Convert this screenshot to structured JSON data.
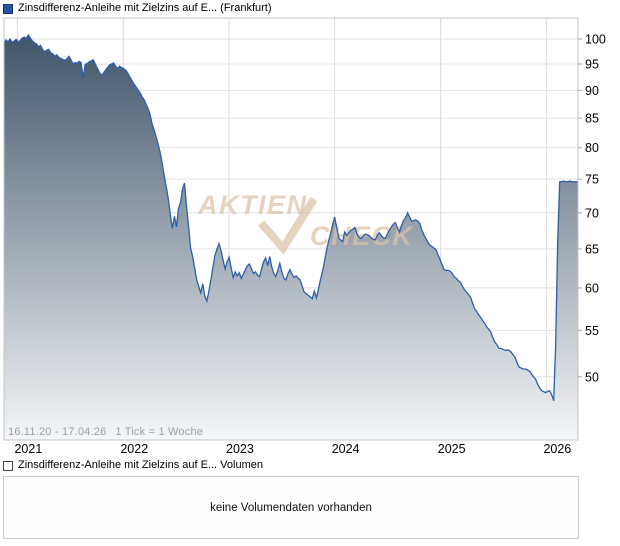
{
  "header": {
    "title": "Zinsdifferenz-Anleihe mit Zielzins auf E... (Frankfurt)"
  },
  "chart_data": {
    "type": "area",
    "title": "Zinsdifferenz-Anleihe mit Zielzins auf E... (Frankfurt)",
    "scale": "log",
    "x_unit": "weeks since 16.11.2020",
    "total_weeks": 283,
    "range_label": "16.11.20 - 17.04.26",
    "tick_note": "1 Tick = 1 Woche",
    "ylim": [
      43.9,
      104.4
    ],
    "y_ticks": [
      100,
      95,
      90,
      85,
      80,
      75,
      70,
      65,
      60,
      55,
      50
    ],
    "y_grid_unlabeled": [
      45
    ],
    "x_ticks": [
      {
        "label": "2021",
        "week": 6.6
      },
      {
        "label": "2022",
        "week": 58.8
      },
      {
        "label": "2023",
        "week": 110.9
      },
      {
        "label": "2024",
        "week": 163.0
      },
      {
        "label": "2025",
        "week": 215.3
      },
      {
        "label": "2026",
        "week": 267.4
      }
    ],
    "watermark": {
      "line1": "AKTIEN",
      "line2": "CHECK"
    },
    "colors": {
      "line": "#2e5fa5",
      "fill_top": "#3a4e64",
      "fill_bottom": "#f4f6f8",
      "grid": "#e2e2e2",
      "grid_vertical": "#dcdcdc",
      "border": "#c2c5c7",
      "tick": "#aaaaaa",
      "axis_text": "#000000",
      "watermark": "#d8c2a6",
      "footer_text": "#9aa1a8"
    },
    "series": [
      {
        "name": "Zinsdifferenz-Anleihe mit Zielzins auf E... (Frankfurt)",
        "points": [
          [
            0,
            99.2
          ],
          [
            1,
            99.8
          ],
          [
            2,
            99.4
          ],
          [
            3,
            100.0
          ],
          [
            4,
            99.3
          ],
          [
            5,
            99.6
          ],
          [
            6,
            99.9
          ],
          [
            7,
            99.4
          ],
          [
            8,
            99.7
          ],
          [
            9,
            100.2
          ],
          [
            10,
            100.4
          ],
          [
            11,
            100.1
          ],
          [
            12,
            100.8
          ],
          [
            13,
            100.2
          ],
          [
            14,
            99.6
          ],
          [
            15,
            99.2
          ],
          [
            16,
            99.0
          ],
          [
            17,
            98.4
          ],
          [
            18,
            98.7
          ],
          [
            19,
            97.9
          ],
          [
            20,
            97.4
          ],
          [
            21,
            97.7
          ],
          [
            22,
            97.9
          ],
          [
            23,
            97.2
          ],
          [
            24,
            97.0
          ],
          [
            25,
            96.5
          ],
          [
            26,
            96.8
          ],
          [
            27,
            96.3
          ],
          [
            28,
            96.1
          ],
          [
            29,
            95.9
          ],
          [
            30,
            95.7
          ],
          [
            31,
            96.0
          ],
          [
            32,
            96.5
          ],
          [
            33,
            95.9
          ],
          [
            34,
            95.0
          ],
          [
            35,
            95.3
          ],
          [
            36,
            95.1
          ],
          [
            37,
            95.5
          ],
          [
            38,
            95.3
          ],
          [
            39,
            92.3
          ],
          [
            40,
            94.9
          ],
          [
            41,
            95.1
          ],
          [
            42,
            95.4
          ],
          [
            43,
            95.6
          ],
          [
            44,
            95.8
          ],
          [
            45,
            95.0
          ],
          [
            46,
            94.2
          ],
          [
            47,
            93.4
          ],
          [
            48,
            92.8
          ],
          [
            49,
            93.2
          ],
          [
            50,
            93.8
          ],
          [
            51,
            94.3
          ],
          [
            52,
            94.8
          ],
          [
            53,
            95.0
          ],
          [
            54,
            95.2
          ],
          [
            55,
            94.6
          ],
          [
            56,
            94.1
          ],
          [
            57,
            94.6
          ],
          [
            58,
            94.3
          ],
          [
            59,
            94.1
          ],
          [
            60,
            93.8
          ],
          [
            61,
            93.3
          ],
          [
            62,
            92.5
          ],
          [
            63,
            91.9
          ],
          [
            64,
            91.2
          ],
          [
            65,
            90.7
          ],
          [
            66,
            90.1
          ],
          [
            67,
            89.6
          ],
          [
            68,
            88.9
          ],
          [
            69,
            88.3
          ],
          [
            70,
            87.5
          ],
          [
            71,
            86.7
          ],
          [
            72,
            85.7
          ],
          [
            73,
            84.0
          ],
          [
            74,
            83.0
          ],
          [
            75,
            81.8
          ],
          [
            76,
            80.6
          ],
          [
            77,
            79.2
          ],
          [
            78,
            77.5
          ],
          [
            79,
            75.5
          ],
          [
            80,
            73.8
          ],
          [
            81,
            72.0
          ],
          [
            82,
            69.8
          ],
          [
            83,
            67.8
          ],
          [
            84,
            69.5
          ],
          [
            85,
            68.0
          ],
          [
            86,
            70.5
          ],
          [
            87,
            71.5
          ],
          [
            88,
            73.5
          ],
          [
            89,
            74.4
          ],
          [
            90,
            71.0
          ],
          [
            91,
            68.0
          ],
          [
            92,
            65.1
          ],
          [
            93,
            64.0
          ],
          [
            94,
            62.5
          ],
          [
            95,
            61.0
          ],
          [
            96,
            60.2
          ],
          [
            97,
            59.4
          ],
          [
            98,
            60.5
          ],
          [
            99,
            59.0
          ],
          [
            100,
            58.4
          ],
          [
            101,
            59.6
          ],
          [
            102,
            61.0
          ],
          [
            103,
            62.6
          ],
          [
            104,
            64.1
          ],
          [
            105,
            65.0
          ],
          [
            106,
            65.7
          ],
          [
            107,
            64.8
          ],
          [
            108,
            63.5
          ],
          [
            109,
            62.4
          ],
          [
            110,
            63.3
          ],
          [
            111,
            63.9
          ],
          [
            112,
            62.5
          ],
          [
            113,
            61.3
          ],
          [
            114,
            62.0
          ],
          [
            115,
            61.5
          ],
          [
            116,
            61.9
          ],
          [
            117,
            61.2
          ],
          [
            118,
            61.7
          ],
          [
            119,
            62.3
          ],
          [
            120,
            62.8
          ],
          [
            121,
            63.0
          ],
          [
            122,
            62.4
          ],
          [
            123,
            61.8
          ],
          [
            124,
            62.0
          ],
          [
            125,
            61.6
          ],
          [
            126,
            61.4
          ],
          [
            127,
            62.4
          ],
          [
            128,
            63.3
          ],
          [
            129,
            63.8
          ],
          [
            130,
            62.8
          ],
          [
            131,
            64.0
          ],
          [
            132,
            62.7
          ],
          [
            133,
            61.8
          ],
          [
            134,
            61.4
          ],
          [
            135,
            62.2
          ],
          [
            136,
            63.1
          ],
          [
            137,
            62.0
          ],
          [
            138,
            61.2
          ],
          [
            139,
            61.0
          ],
          [
            140,
            61.8
          ],
          [
            141,
            62.3
          ],
          [
            142,
            61.7
          ],
          [
            143,
            61.3
          ],
          [
            144,
            61.5
          ],
          [
            145,
            61.2
          ],
          [
            146,
            61.0
          ],
          [
            147,
            60.2
          ],
          [
            148,
            59.5
          ],
          [
            149,
            59.3
          ],
          [
            150,
            59.1
          ],
          [
            151,
            58.9
          ],
          [
            152,
            58.7
          ],
          [
            153,
            59.6
          ],
          [
            154,
            58.8
          ],
          [
            155,
            59.8
          ],
          [
            156,
            61.0
          ],
          [
            157,
            62.0
          ],
          [
            158,
            63.3
          ],
          [
            159,
            64.8
          ],
          [
            160,
            66.0
          ],
          [
            161,
            67.1
          ],
          [
            162,
            68.3
          ],
          [
            163,
            69.4
          ],
          [
            164,
            68.0
          ],
          [
            165,
            66.5
          ],
          [
            166,
            66.2
          ],
          [
            167,
            66.0
          ],
          [
            168,
            67.3
          ],
          [
            169,
            66.8
          ],
          [
            170,
            67.2
          ],
          [
            171,
            67.5
          ],
          [
            172,
            67.7
          ],
          [
            173,
            67.9
          ],
          [
            174,
            67.0
          ],
          [
            175,
            66.6
          ],
          [
            176,
            66.4
          ],
          [
            177,
            66.7
          ],
          [
            178,
            67.0
          ],
          [
            179,
            66.9
          ],
          [
            180,
            66.8
          ],
          [
            181,
            66.5
          ],
          [
            182,
            66.3
          ],
          [
            183,
            66.2
          ],
          [
            184,
            66.8
          ],
          [
            185,
            67.2
          ],
          [
            186,
            66.8
          ],
          [
            187,
            66.5
          ],
          [
            188,
            66.4
          ],
          [
            189,
            67.0
          ],
          [
            190,
            67.5
          ],
          [
            191,
            68.0
          ],
          [
            192,
            68.4
          ],
          [
            193,
            68.6
          ],
          [
            194,
            67.8
          ],
          [
            195,
            67.3
          ],
          [
            196,
            68.2
          ],
          [
            197,
            68.9
          ],
          [
            198,
            69.3
          ],
          [
            199,
            70.0
          ],
          [
            200,
            69.4
          ],
          [
            201,
            68.8
          ],
          [
            202,
            68.9
          ],
          [
            203,
            69.0
          ],
          [
            204,
            68.8
          ],
          [
            205,
            68.5
          ],
          [
            206,
            67.6
          ],
          [
            207,
            66.9
          ],
          [
            208,
            66.4
          ],
          [
            209,
            65.9
          ],
          [
            210,
            65.5
          ],
          [
            211,
            65.3
          ],
          [
            212,
            65.1
          ],
          [
            213,
            64.9
          ],
          [
            214,
            64.2
          ],
          [
            215,
            63.6
          ],
          [
            216,
            62.9
          ],
          [
            217,
            62.3
          ],
          [
            218,
            62.2
          ],
          [
            219,
            62.2
          ],
          [
            220,
            62.1
          ],
          [
            221,
            61.8
          ],
          [
            222,
            61.4
          ],
          [
            223,
            61.2
          ],
          [
            224,
            60.9
          ],
          [
            225,
            60.7
          ],
          [
            226,
            60.2
          ],
          [
            227,
            59.8
          ],
          [
            228,
            59.5
          ],
          [
            229,
            59.2
          ],
          [
            230,
            58.9
          ],
          [
            231,
            58.2
          ],
          [
            232,
            57.5
          ],
          [
            233,
            57.2
          ],
          [
            234,
            56.8
          ],
          [
            235,
            56.5
          ],
          [
            236,
            56.1
          ],
          [
            237,
            55.8
          ],
          [
            238,
            55.4
          ],
          [
            239,
            55.1
          ],
          [
            240,
            54.8
          ],
          [
            241,
            54.2
          ],
          [
            242,
            53.7
          ],
          [
            243,
            53.4
          ],
          [
            244,
            53.0
          ],
          [
            245,
            53.0
          ],
          [
            246,
            52.9
          ],
          [
            247,
            52.8
          ],
          [
            248,
            52.8
          ],
          [
            249,
            52.8
          ],
          [
            250,
            52.6
          ],
          [
            251,
            52.3
          ],
          [
            252,
            52.0
          ],
          [
            253,
            51.4
          ],
          [
            254,
            51.0
          ],
          [
            255,
            50.9
          ],
          [
            256,
            50.8
          ],
          [
            257,
            50.8
          ],
          [
            258,
            50.7
          ],
          [
            259,
            50.6
          ],
          [
            260,
            50.3
          ],
          [
            261,
            50.0
          ],
          [
            262,
            49.8
          ],
          [
            263,
            49.3
          ],
          [
            264,
            48.9
          ],
          [
            265,
            48.6
          ],
          [
            266,
            48.5
          ],
          [
            267,
            48.4
          ],
          [
            268,
            48.5
          ],
          [
            269,
            48.6
          ],
          [
            270,
            48.2
          ],
          [
            271,
            47.6
          ],
          [
            272,
            53.5
          ],
          [
            273,
            66.2
          ],
          [
            274,
            74.6
          ],
          [
            275,
            74.6
          ],
          [
            276,
            74.7
          ],
          [
            277,
            74.6
          ],
          [
            278,
            74.6
          ],
          [
            279,
            74.7
          ],
          [
            280,
            74.6
          ],
          [
            281,
            74.6
          ],
          [
            282,
            74.6
          ],
          [
            283,
            74.6
          ]
        ]
      }
    ]
  },
  "volume_section": {
    "title": "Zinsdifferenz-Anleihe mit Zielzins auf E... Volumen",
    "message": "keine Volumendaten vorhanden"
  }
}
